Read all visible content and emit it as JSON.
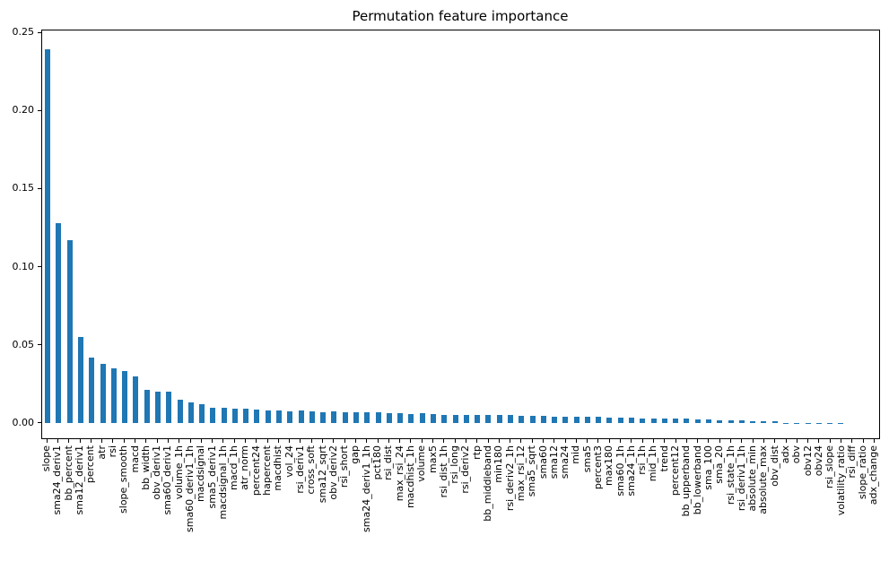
{
  "figure": {
    "background": "#ffffff",
    "spine_color": "#000000"
  },
  "chart_data": {
    "type": "bar",
    "title": "Permutation feature importance",
    "xlabel": "",
    "ylabel": "",
    "legend": null,
    "grid": false,
    "bar_color": "#1f77b4",
    "ylim": [
      -0.0098,
      0.2512
    ],
    "yticks": [
      0.0,
      0.05,
      0.1,
      0.15,
      0.2,
      0.25
    ],
    "ytick_labels": [
      "0.00",
      "0.05",
      "0.10",
      "0.15",
      "0.20",
      "0.25"
    ],
    "categories": [
      "slope",
      "sma24_deriv1",
      "bb_percent",
      "sma12_deriv1",
      "percent",
      "atr",
      "rsi",
      "slope_smooth",
      "macd",
      "bb_width",
      "obv_deriv1",
      "sma60_deriv1",
      "volume_1h",
      "sma60_deriv1_1h",
      "macdsignal",
      "sma5_deriv1",
      "macdsignal_1h",
      "macd_1h",
      "atr_norm",
      "percent24",
      "hapercent",
      "macdhist",
      "vol_24",
      "rsi_deriv1",
      "cross_soft",
      "sma12_sqrt",
      "obv_deriv2",
      "rsi_short",
      "gap",
      "sma24_deriv1_1h",
      "pct180",
      "rsi_dist",
      "max_rsi_24",
      "macdhist_1h",
      "volume",
      "max5",
      "rsi_dist_1h",
      "rsi_long",
      "rsi_deriv2",
      "rtp",
      "bb_middleband",
      "min180",
      "rsi_deriv2_1h",
      "max_rsi_12",
      "sma5_sqrt",
      "sma60",
      "sma12",
      "sma24",
      "mid",
      "sma5",
      "percent3",
      "max180",
      "sma60_1h",
      "sma24_1h",
      "rsi_1h",
      "mid_1h",
      "trend",
      "percent12",
      "bb_upperband",
      "bb_lowerband",
      "sma_100",
      "sma_20",
      "rsi_state_1h",
      "rsi_deriv1_1h",
      "absolute_min",
      "absolute_max",
      "obv_dist",
      "adx",
      "obv",
      "obv12",
      "obv24",
      "rsi_slope",
      "volatility_ratio",
      "rsi_diff",
      "slope_ratio",
      "adx_change"
    ],
    "values": [
      0.239,
      0.128,
      0.117,
      0.055,
      0.042,
      0.038,
      0.035,
      0.033,
      0.03,
      0.021,
      0.02,
      0.02,
      0.015,
      0.013,
      0.012,
      0.01,
      0.0095,
      0.009,
      0.009,
      0.0085,
      0.008,
      0.0082,
      0.0075,
      0.008,
      0.0072,
      0.007,
      0.0073,
      0.0067,
      0.0071,
      0.0071,
      0.0069,
      0.0063,
      0.0063,
      0.0056,
      0.0061,
      0.0059,
      0.0053,
      0.0053,
      0.0051,
      0.0051,
      0.005,
      0.0049,
      0.0049,
      0.0046,
      0.0043,
      0.0043,
      0.0041,
      0.0041,
      0.0039,
      0.0039,
      0.0037,
      0.0033,
      0.0033,
      0.0033,
      0.0031,
      0.0031,
      0.0029,
      0.0029,
      0.0026,
      0.0023,
      0.0021,
      0.0019,
      0.0016,
      0.0016,
      0.0013,
      0.0013,
      0.0011,
      0.0002,
      0.0002,
      0.0001,
      0.0001,
      0.0001,
      0.0001,
      0.0,
      0.0,
      0.0
    ]
  }
}
